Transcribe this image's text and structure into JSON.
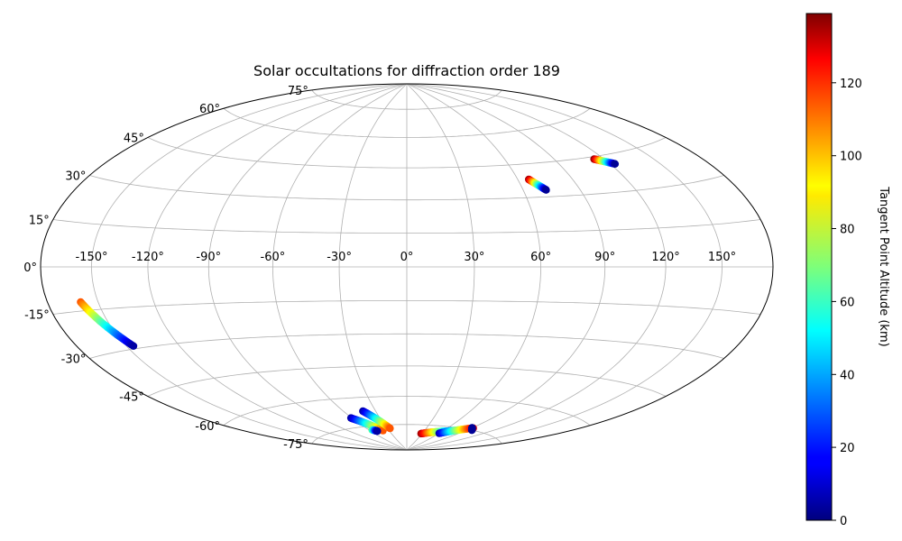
{
  "chart_data": {
    "type": "scatter",
    "projection": "hammer",
    "title": "Solar occultations for diffraction order 189",
    "grid": true,
    "xlabel": "",
    "ylabel": "",
    "longitude_ticks": [
      "-150°",
      "-120°",
      "-90°",
      "-60°",
      "-30°",
      "0°",
      "30°",
      "60°",
      "90°",
      "120°",
      "150°"
    ],
    "latitude_ticks": [
      "75°",
      "60°",
      "45°",
      "30°",
      "15°",
      "0°",
      "-15°",
      "-30°",
      "-45°",
      "-60°",
      "-75°"
    ],
    "colorbar": {
      "label": "Tangent Point Altitude (km)",
      "colormap": "jet",
      "range": [
        0,
        139
      ],
      "ticks": [
        "0",
        "20",
        "40",
        "60",
        "80",
        "100",
        "120"
      ]
    },
    "series": [
      {
        "tracks": [
          {
            "lon_start": -160,
            "lat_start": -12,
            "lon_end": -146,
            "lat_end": -29,
            "alt_start": 110,
            "alt_end": 5
          },
          {
            "lon_start": 66,
            "lat_start": 38,
            "lon_end": 72,
            "lat_end": 33,
            "alt_start": 135,
            "alt_end": 3
          },
          {
            "lon_start": 114,
            "lat_start": 44,
            "lon_end": 123,
            "lat_end": 41,
            "alt_start": 138,
            "alt_end": 3
          },
          {
            "lon_start": -61,
            "lat_start": -70,
            "lon_end": -40,
            "lat_end": -78,
            "alt_start": 5,
            "alt_end": 110
          },
          {
            "lon_start": -42,
            "lat_start": -67,
            "lon_end": -26,
            "lat_end": -77,
            "alt_start": 5,
            "alt_end": 110
          },
          {
            "lon_start": -55,
            "lat_start": -77,
            "lon_end": -50,
            "lat_end": -78,
            "alt_start": 70,
            "alt_end": 5
          },
          {
            "lon_start": 28,
            "lat_start": -80,
            "lon_end": 72,
            "lat_end": -77,
            "alt_start": 135,
            "alt_end": 30
          },
          {
            "lon_start": 60,
            "lat_start": -79,
            "lon_end": 92,
            "lat_end": -74,
            "alt_start": 5,
            "alt_end": 125
          },
          {
            "lon_start": 90,
            "lat_start": -74,
            "lon_end": 96,
            "lat_end": -75,
            "alt_start": 3,
            "alt_end": 3
          }
        ]
      }
    ]
  }
}
